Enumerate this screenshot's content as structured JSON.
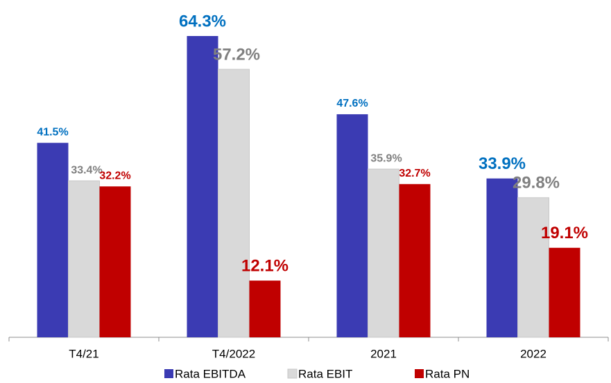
{
  "chart_data": {
    "type": "bar",
    "categories": [
      "T4/21",
      "T4/2022",
      "2021",
      "2022"
    ],
    "series": [
      {
        "name": "Rata EBITDA",
        "color": "#3b3bb3",
        "label_color": "#0070c0",
        "values": [
          41.5,
          64.3,
          47.6,
          33.9
        ],
        "value_labels": [
          "41.5%",
          "64.3%",
          "47.6%",
          "33.9%"
        ]
      },
      {
        "name": "Rata EBIT",
        "color": "#d9d9d9",
        "label_color": "#808080",
        "values": [
          33.4,
          57.2,
          35.9,
          29.8
        ],
        "value_labels": [
          "33.4%",
          "57.2%",
          "35.9%",
          "29.8%"
        ]
      },
      {
        "name": "Rata PN",
        "color": "#c00000",
        "label_color": "#c00000",
        "values": [
          32.2,
          12.1,
          32.7,
          19.1
        ],
        "value_labels": [
          "32.2%",
          "12.1%",
          "32.7%",
          "19.1%"
        ]
      }
    ],
    "legend": "bottom"
  }
}
